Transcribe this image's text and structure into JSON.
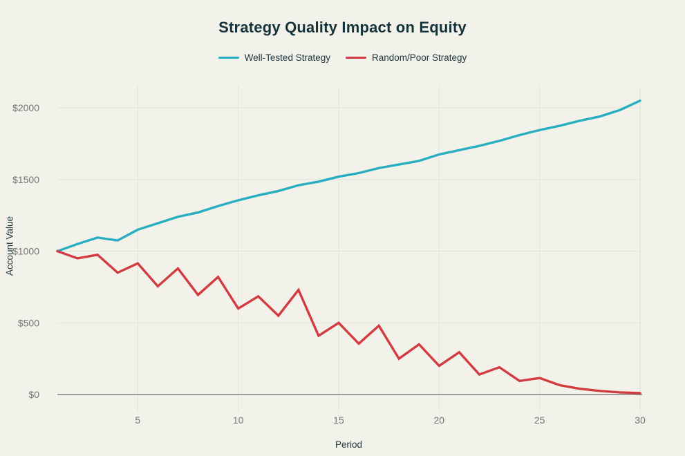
{
  "page": {
    "background": "#f2f1ea"
  },
  "chart_data": {
    "type": "line",
    "title": "Strategy Quality Impact on Equity",
    "xlabel": "Period",
    "ylabel": "Account Value",
    "xlim": [
      1,
      30
    ],
    "ylim": [
      0,
      2150
    ],
    "grid": true,
    "legend_position": "top",
    "x": [
      1,
      2,
      3,
      4,
      5,
      6,
      7,
      8,
      9,
      10,
      11,
      12,
      13,
      14,
      15,
      16,
      17,
      18,
      19,
      20,
      21,
      22,
      23,
      24,
      25,
      26,
      27,
      28,
      29,
      30
    ],
    "xticks": [
      5,
      10,
      15,
      20,
      25,
      30
    ],
    "yticks": [
      {
        "value": 0,
        "label": "$0"
      },
      {
        "value": 500,
        "label": "$500"
      },
      {
        "value": 1000,
        "label": "$1000"
      },
      {
        "value": 1500,
        "label": "$1500"
      },
      {
        "value": 2000,
        "label": "$2000"
      }
    ],
    "series": [
      {
        "name": "Well-Tested Strategy",
        "color": "#27aec1",
        "values": [
          1000,
          1050,
          1095,
          1075,
          1150,
          1195,
          1240,
          1270,
          1315,
          1355,
          1390,
          1420,
          1460,
          1485,
          1520,
          1545,
          1580,
          1605,
          1630,
          1675,
          1705,
          1735,
          1770,
          1810,
          1845,
          1875,
          1910,
          1940,
          1985,
          2050
        ]
      },
      {
        "name": "Random/Poor Strategy",
        "color": "#d23b40",
        "values": [
          1000,
          950,
          975,
          850,
          915,
          755,
          880,
          695,
          820,
          600,
          685,
          550,
          730,
          410,
          500,
          355,
          480,
          250,
          350,
          200,
          295,
          140,
          190,
          95,
          115,
          65,
          40,
          25,
          15,
          10
        ]
      }
    ],
    "colors": {
      "background": "#f2f1ea",
      "title_text": "#14333b",
      "axis_title_text": "#1c353d",
      "tick_text": "#74746e",
      "gridline": "#e4e2da",
      "zero_line": "#6e6e68"
    }
  }
}
